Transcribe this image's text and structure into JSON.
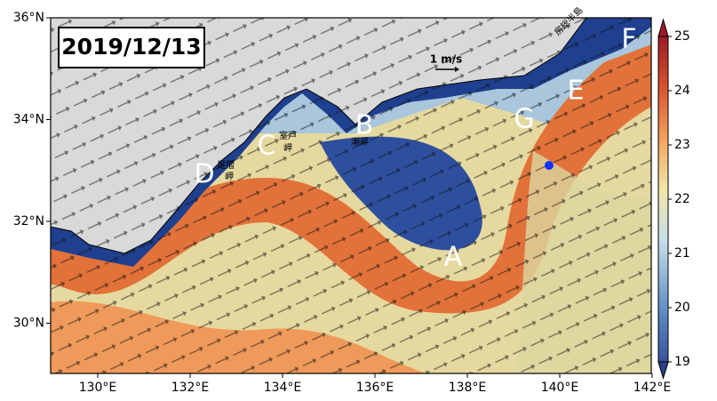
{
  "map": {
    "date": "2019/12/13",
    "lon_ticks": [
      "130°E",
      "132°E",
      "134°E",
      "136°E",
      "138°E",
      "140°E",
      "142°E"
    ],
    "lat_ticks": [
      "36°N",
      "34°N",
      "32°N",
      "30°N"
    ],
    "colorbar_ticks": [
      19,
      20,
      21,
      22,
      23,
      24,
      25
    ],
    "region_labels": [
      "A",
      "B",
      "C",
      "D",
      "E",
      "F",
      "G"
    ],
    "place_labels": [
      "室戸",
      "岬",
      "潮岬",
      "足摺",
      "岬",
      "房総半島"
    ],
    "scale_label": "1 m/s"
  }
}
